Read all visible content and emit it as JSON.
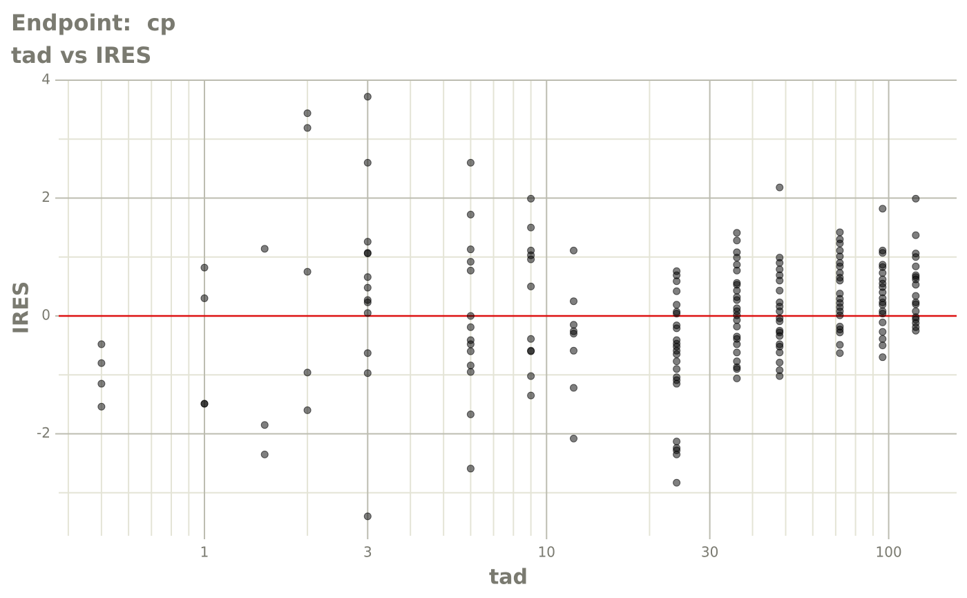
{
  "chart_data": {
    "type": "scatter",
    "title": "Endpoint:  cp",
    "subtitle": "tad vs IRES",
    "x_label": "tad",
    "y_label": "IRES",
    "x_log": true,
    "xlim": [
      0.375,
      158
    ],
    "ylim": [
      -3.73,
      4
    ],
    "xticks": [
      1,
      3,
      10,
      30,
      100
    ],
    "yticks": [
      -2,
      0,
      2,
      4
    ],
    "x_minor_ticks": [
      0.4,
      0.5,
      0.6,
      0.7,
      0.8,
      0.9,
      2,
      4,
      5,
      6,
      7,
      8,
      9,
      20,
      40,
      50,
      60,
      70,
      80,
      90
    ],
    "y_minor_ticks": [
      -3,
      -1,
      1,
      3
    ],
    "grid": true,
    "reference_line": {
      "value": 0,
      "color": "#dd1111"
    },
    "series": [
      {
        "color": "#000000",
        "x": [
          0.5,
          0.5,
          0.5,
          0.5,
          1,
          1,
          1,
          1,
          1.5,
          1.5,
          1.5,
          2,
          2,
          2,
          2,
          2,
          3,
          3,
          3,
          3,
          3,
          3,
          3,
          3,
          3,
          3,
          3,
          3,
          3,
          6,
          6,
          6,
          6,
          6,
          6,
          6,
          6,
          6,
          6,
          6,
          6,
          6,
          6,
          9,
          9,
          9,
          9,
          9,
          9,
          9,
          9,
          9,
          9,
          9,
          12,
          12,
          12,
          12,
          12,
          12,
          12,
          12,
          24,
          24,
          24,
          24,
          24,
          24,
          24,
          24,
          24,
          24,
          24,
          24,
          24,
          24,
          24,
          24,
          24,
          24,
          24,
          24,
          24,
          24,
          24,
          24,
          36,
          36,
          36,
          36,
          36,
          36,
          36,
          36,
          36,
          36,
          36,
          36,
          36,
          36,
          36,
          36,
          36,
          36,
          36,
          36,
          36,
          36,
          36,
          36,
          48,
          48,
          48,
          48,
          48,
          48,
          48,
          48,
          48,
          48,
          48,
          48,
          48,
          48,
          48,
          48,
          48,
          48,
          48,
          48,
          48,
          72,
          72,
          72,
          72,
          72,
          72,
          72,
          72,
          72,
          72,
          72,
          72,
          72,
          72,
          72,
          72,
          72,
          72,
          72,
          72,
          72,
          96,
          96,
          96,
          96,
          96,
          96,
          96,
          96,
          96,
          96,
          96,
          96,
          96,
          96,
          96,
          96,
          96,
          96,
          96,
          96,
          120,
          120,
          120,
          120,
          120,
          120,
          120,
          120,
          120,
          120,
          120,
          120,
          120,
          120,
          120,
          120,
          120,
          120
        ],
        "values": [
          -0.48,
          -0.8,
          -1.15,
          -1.54,
          0.82,
          0.3,
          -1.49,
          -1.49,
          1.14,
          -1.85,
          -2.35,
          3.44,
          3.19,
          0.75,
          -0.96,
          -1.6,
          3.72,
          2.6,
          1.26,
          1.07,
          1.06,
          0.66,
          0.48,
          0.27,
          0.23,
          0.05,
          -0.63,
          -0.97,
          -3.4,
          2.6,
          1.72,
          1.13,
          0.92,
          0.77,
          0.0,
          -0.19,
          -0.41,
          -0.48,
          -0.6,
          -0.84,
          -0.95,
          -1.67,
          -2.59,
          1.99,
          1.5,
          1.11,
          1.03,
          0.96,
          0.5,
          -0.39,
          -0.59,
          -0.6,
          -1.02,
          -1.35,
          1.11,
          0.25,
          -0.15,
          -0.26,
          -0.3,
          -0.59,
          -1.22,
          -2.08,
          0.76,
          0.69,
          0.59,
          0.42,
          0.19,
          0.07,
          0.04,
          -0.16,
          -0.21,
          -0.41,
          -0.47,
          -0.52,
          -0.59,
          -0.65,
          -0.77,
          -0.9,
          -1.04,
          -1.09,
          -1.15,
          -2.13,
          -2.24,
          -2.28,
          -2.35,
          -2.83,
          1.41,
          1.28,
          1.08,
          0.99,
          0.87,
          0.77,
          0.56,
          0.53,
          0.43,
          0.32,
          0.27,
          0.13,
          0.08,
          0.01,
          -0.07,
          -0.18,
          -0.35,
          -0.39,
          -0.48,
          -0.62,
          -0.77,
          -0.87,
          -0.9,
          -1.06,
          2.18,
          0.99,
          0.9,
          0.79,
          0.69,
          0.6,
          0.43,
          0.23,
          0.16,
          0.08,
          -0.04,
          -0.09,
          -0.25,
          -0.28,
          -0.34,
          -0.48,
          -0.52,
          -0.62,
          -0.79,
          -0.92,
          -1.02,
          1.42,
          1.3,
          1.23,
          1.11,
          1.01,
          0.9,
          0.84,
          0.73,
          0.65,
          0.6,
          0.38,
          0.29,
          0.22,
          0.15,
          0.08,
          0.01,
          -0.18,
          -0.23,
          -0.28,
          -0.49,
          -0.63,
          1.82,
          1.11,
          1.07,
          0.87,
          0.83,
          0.73,
          0.62,
          0.55,
          0.49,
          0.4,
          0.3,
          0.23,
          0.19,
          0.08,
          0.04,
          -0.11,
          -0.27,
          -0.39,
          -0.5,
          -0.7,
          1.99,
          1.37,
          1.06,
          1.0,
          0.84,
          0.69,
          0.66,
          0.62,
          0.53,
          0.34,
          0.23,
          0.2,
          0.08,
          -0.02,
          -0.06,
          -0.12,
          -0.19,
          -0.25
        ]
      }
    ]
  }
}
